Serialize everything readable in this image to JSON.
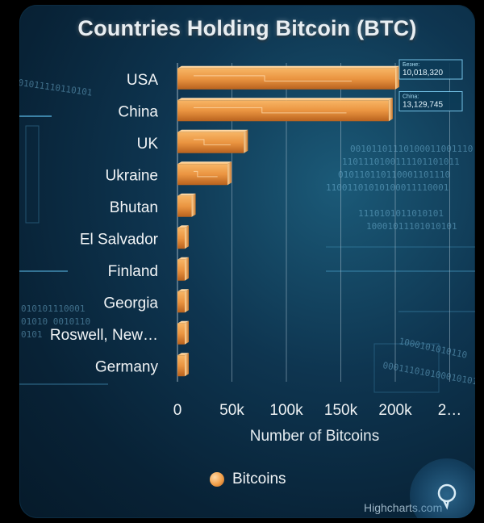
{
  "chart_data": {
    "type": "bar",
    "orientation": "horizontal",
    "title": "Countries Holding Bitcoin (BTC)",
    "xlabel": "Number of Bitcoins",
    "categories": [
      "USA",
      "China",
      "UK",
      "Ukraine",
      "Bhutan",
      "El Salvador",
      "Finland",
      "Georgia",
      "Roswell, New…",
      "Germany"
    ],
    "series": [
      {
        "name": "Bitcoins",
        "values": [
          200000,
          194000,
          61000,
          46000,
          13000,
          6000,
          1981,
          66,
          0,
          0
        ]
      }
    ],
    "xticks": [
      "0",
      "50k",
      "100k",
      "150k",
      "200k",
      "2…"
    ],
    "xlim": [
      0,
      250000
    ],
    "tick_step": 50000,
    "legend": "bottom",
    "grid": true,
    "callouts": [
      {
        "prefix": "Безне:",
        "value": "10,018,320"
      },
      {
        "prefix": "China:",
        "value": "13,129,745"
      }
    ],
    "bar_color": "#f0a04b"
  },
  "credits": "Highcharts.com"
}
